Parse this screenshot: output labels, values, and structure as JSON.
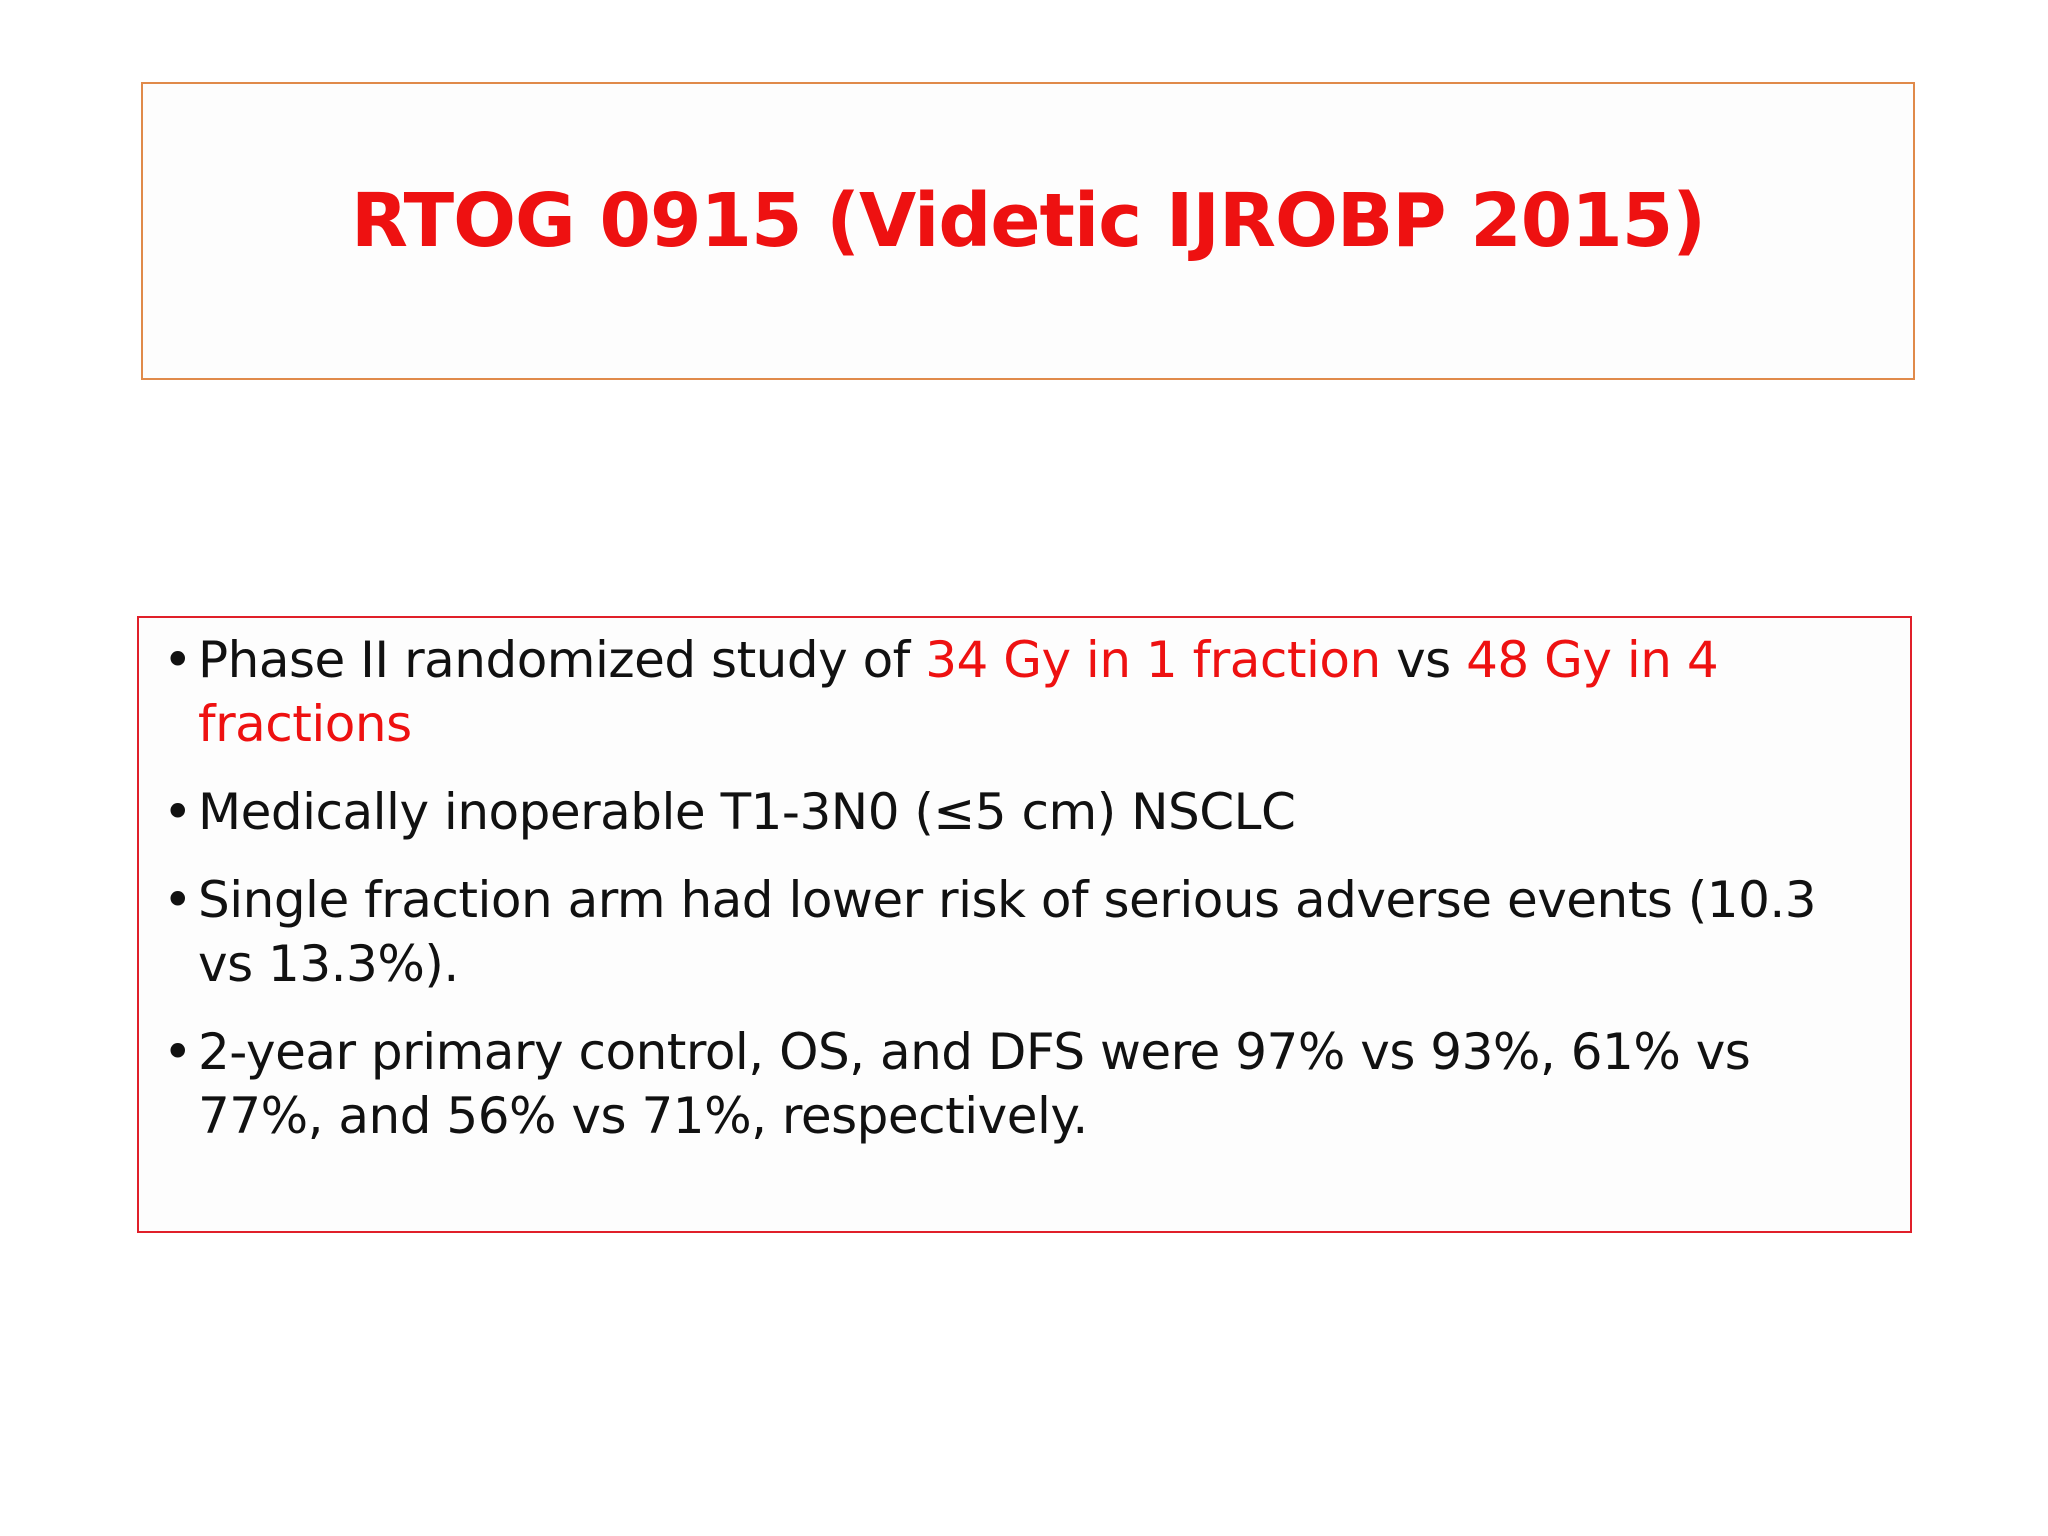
{
  "slide": {
    "title": "RTOG 0915 (Videtic IJROBP 2015)",
    "bullets": [
      {
        "part1": "Phase II randomized study of ",
        "highlight1": "34 Gy in 1 fraction",
        "part2": " vs ",
        "highlight2": "48 Gy in 4 fractions"
      },
      {
        "text": "Medically inoperable T1-3N0 (≤5 cm) NSCLC"
      },
      {
        "text": "Single fraction arm had lower risk of serious adverse events (10.3 vs 13.3%)."
      },
      {
        "text": "2-year primary control, OS, and DFS were 97% vs 93%, 61% vs 77%, and 56% vs 71%, respectively."
      }
    ],
    "bullet_symbol": "•"
  },
  "colors": {
    "title": "#ee1111",
    "highlight": "#ee1111",
    "title_border": "#e08a4a",
    "content_border": "#e0202a",
    "text": "#111111"
  }
}
